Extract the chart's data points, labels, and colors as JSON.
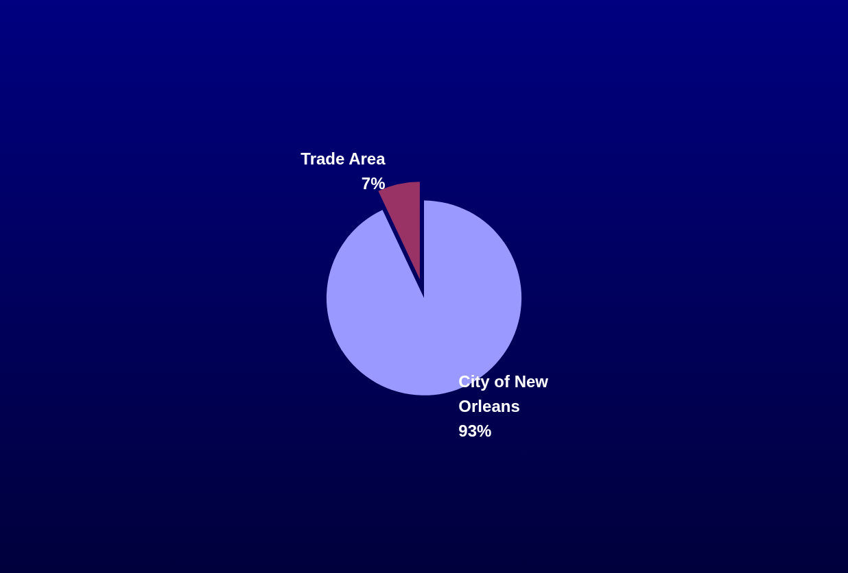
{
  "chart_data": {
    "type": "pie",
    "categories": [
      "City of New Orleans",
      "Trade Area"
    ],
    "values": [
      93,
      7
    ],
    "colors": [
      "#9999ff",
      "#993366"
    ],
    "value_labels": [
      "93%",
      "7%"
    ]
  }
}
